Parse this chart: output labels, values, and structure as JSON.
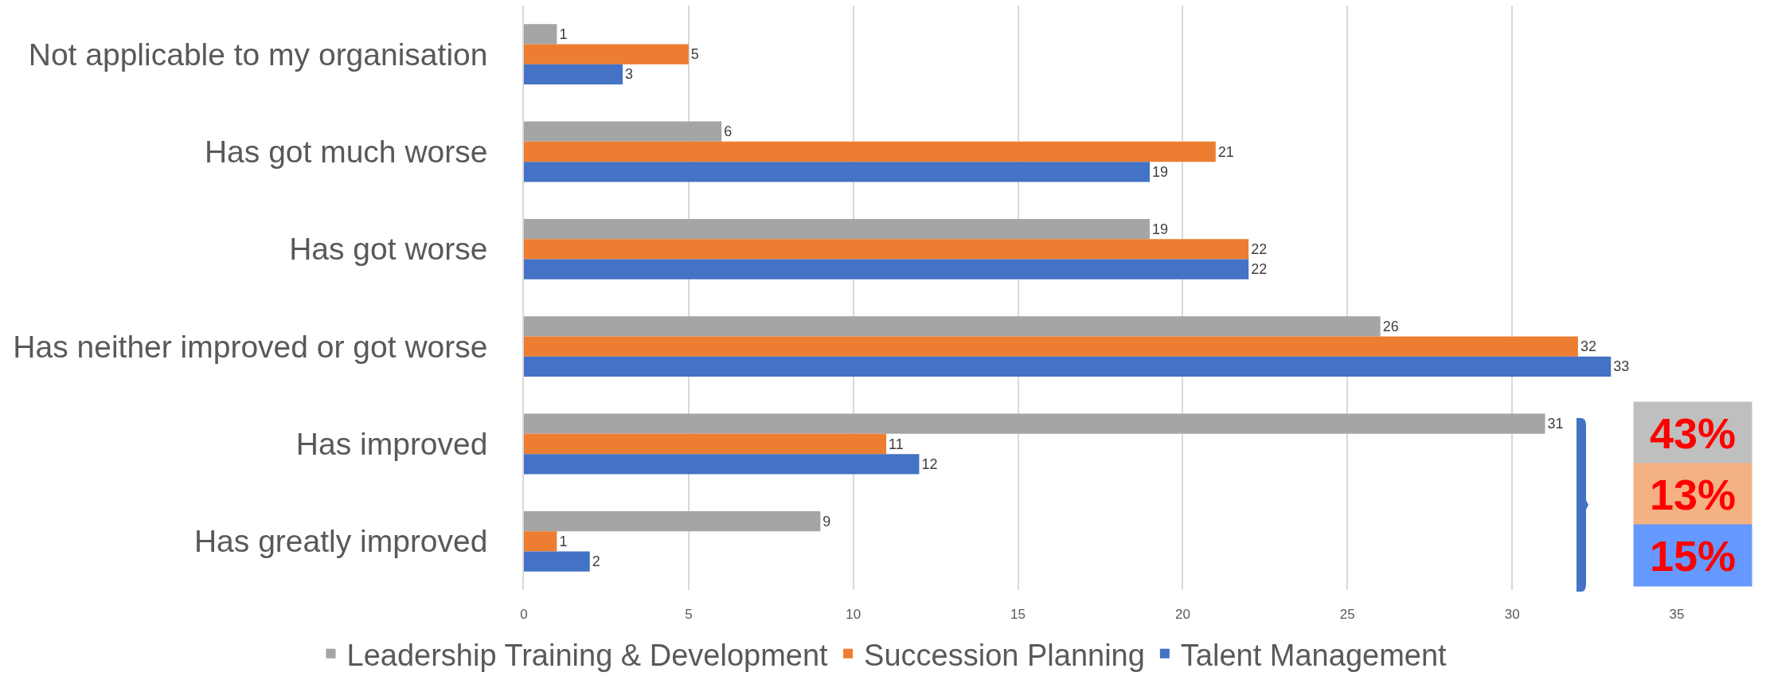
{
  "chart_data": {
    "type": "bar",
    "orientation": "horizontal",
    "categories": [
      "Not applicable to my organisation",
      "Has got much worse",
      "Has got worse",
      "Has neither improved or got worse",
      "Has improved",
      "Has greatly improved"
    ],
    "series": [
      {
        "name": "Leadership Training & Development",
        "color": "#a5a5a5",
        "values": [
          1,
          6,
          19,
          26,
          31,
          9
        ]
      },
      {
        "name": "Succession Planning",
        "color": "#ed7d31",
        "values": [
          5,
          21,
          22,
          32,
          11,
          1
        ]
      },
      {
        "name": "Talent Management",
        "color": "#4472c4",
        "values": [
          3,
          19,
          22,
          33,
          12,
          2
        ]
      }
    ],
    "xlim": [
      0,
      35
    ],
    "xticks": [
      0,
      5,
      10,
      15,
      20,
      25,
      30,
      35
    ],
    "grid": "x",
    "legend": "bottom",
    "data_labels": true,
    "annotations": [
      "43%",
      "13%",
      "15%"
    ]
  }
}
